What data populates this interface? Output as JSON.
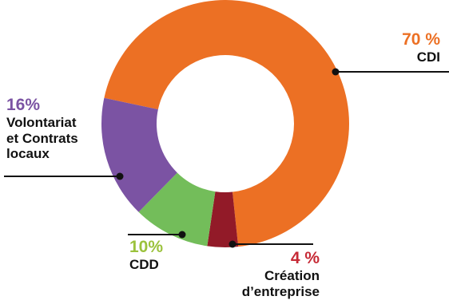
{
  "chart_data": {
    "type": "pie",
    "variant": "donut",
    "categories": [
      "CDI",
      "Création d'entreprise",
      "CDD",
      "Volontariat et Contrats locaux"
    ],
    "values": [
      70,
      4,
      10,
      16
    ],
    "slices": [
      {
        "name": "CDI",
        "value": 70,
        "percent_label": "70 %",
        "label_lines": [
          "CDI"
        ],
        "color": "#EC7024"
      },
      {
        "name": "Création d'entreprise",
        "value": 4,
        "percent_label": "4 %",
        "label_lines": [
          "Création",
          "d’entreprise"
        ],
        "color": "#921A28"
      },
      {
        "name": "CDD",
        "value": 10,
        "percent_label": "10%",
        "label_lines": [
          "CDD"
        ],
        "color": "#73BD5A"
      },
      {
        "name": "Volontariat et Contrats locaux",
        "value": 16,
        "percent_label": "16%",
        "label_lines": [
          "Volontariat",
          "et Contrats",
          "locaux"
        ],
        "color": "#7B53A3"
      }
    ],
    "percent_label_colors": {
      "CDI": "#EC7024",
      "Création d'entreprise": "#C62A36",
      "CDD": "#9BC23C",
      "Volontariat et Contrats locaux": "#7B53A3"
    },
    "legend": "none"
  }
}
